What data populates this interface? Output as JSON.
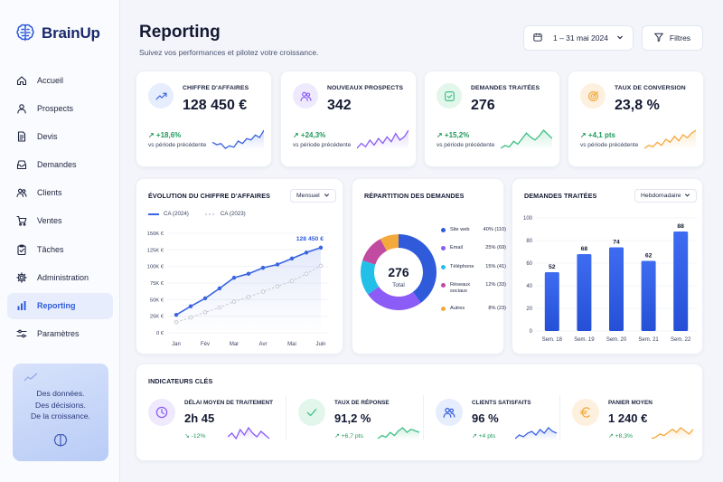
{
  "brand": {
    "name": "BrainUp"
  },
  "sidebar": {
    "items": [
      {
        "label": "Accueil",
        "icon": "home-icon"
      },
      {
        "label": "Prospects",
        "icon": "user-icon"
      },
      {
        "label": "Devis",
        "icon": "document-icon"
      },
      {
        "label": "Demandes",
        "icon": "inbox-icon"
      },
      {
        "label": "Clients",
        "icon": "users-icon"
      },
      {
        "label": "Ventes",
        "icon": "cart-icon"
      },
      {
        "label": "Tâches",
        "icon": "clipboard-check-icon"
      },
      {
        "label": "Administration",
        "icon": "gear-icon"
      },
      {
        "label": "Reporting",
        "icon": "bar-chart-icon",
        "active": true
      },
      {
        "label": "Paramètres",
        "icon": "sliders-icon"
      }
    ],
    "promo": {
      "line1": "Des données.",
      "line2": "Des décisions.",
      "line3": "De la croissance."
    }
  },
  "header": {
    "title": "Reporting",
    "subtitle": "Suivez vos performances et pilotez votre croissance.",
    "date_range": "1 – 31 mai 2024",
    "filter_label": "Filtres"
  },
  "kpis": [
    {
      "label": "CHIFFRE D'AFFAIRES",
      "value": "128 450 €",
      "delta": "↗ +18,6%",
      "sub": "vs période précédente",
      "color": "#3b64e0",
      "bg": "#e6edfc",
      "icon": "trend-up-icon",
      "spark": [
        10,
        8,
        9,
        5,
        7,
        6,
        11,
        9,
        13,
        12,
        16,
        14,
        20
      ]
    },
    {
      "label": "NOUVEAUX PROSPECTS",
      "value": "342",
      "delta": "↗ +24,3%",
      "sub": "vs période précédente",
      "color": "#8b5cf6",
      "bg": "#efe9fd",
      "icon": "users-icon",
      "spark": [
        6,
        9,
        7,
        11,
        8,
        12,
        9,
        13,
        10,
        15,
        11,
        13,
        17
      ]
    },
    {
      "label": "DEMANDES TRAITÉES",
      "value": "276",
      "delta": "↗ +15,2%",
      "sub": "vs période précédente",
      "color": "#3fbf85",
      "bg": "#e2f6ec",
      "icon": "inbox-check-icon",
      "spark": [
        5,
        7,
        6,
        10,
        8,
        12,
        16,
        13,
        11,
        14,
        18,
        15,
        12
      ]
    },
    {
      "label": "TAUX DE CONVERSION",
      "value": "23,8 %",
      "delta": "↗ +4,1 pts",
      "sub": "vs période précédente",
      "color": "#f4a93c",
      "bg": "#fdf0de",
      "icon": "target-icon",
      "spark": [
        4,
        6,
        5,
        8,
        6,
        10,
        8,
        12,
        9,
        13,
        11,
        14,
        16
      ]
    }
  ],
  "revenue_chart": {
    "title": "ÉVOLUTION DU CHIFFRE D'AFFAIRES",
    "period": "Mensuel",
    "legend_current": "CA (2024)",
    "legend_previous": "CA (2023)",
    "peak_label": "128 450 €"
  },
  "chart_data": [
    {
      "type": "line",
      "title": "ÉVOLUTION DU CHIFFRE D'AFFAIRES",
      "x": [
        "Jan",
        "",
        "Fév",
        "",
        "Mar",
        "",
        "Avr",
        "",
        "Mai",
        "",
        "Juin"
      ],
      "x_ticks": [
        "Jan",
        "Fév",
        "Mar",
        "Avr",
        "Mai",
        "Juin"
      ],
      "y_ticks": [
        "0 €",
        "25K €",
        "50K €",
        "75K €",
        "100K €",
        "125K €",
        "150K €"
      ],
      "ylim": [
        0,
        150000
      ],
      "series": [
        {
          "name": "CA (2024)",
          "color": "#3b64e0",
          "values": [
            27000,
            40000,
            52000,
            67000,
            83000,
            89000,
            98000,
            103000,
            112000,
            121000,
            128450
          ]
        },
        {
          "name": "CA (2023)",
          "color": "#c5c9d4",
          "values": [
            16000,
            23000,
            31000,
            38000,
            47000,
            54000,
            62000,
            70000,
            78000,
            89000,
            101000
          ]
        }
      ],
      "grid": true,
      "legend": "top-left"
    },
    {
      "type": "pie",
      "title": "RÉPARTITION DES DEMANDES",
      "center_value": "276",
      "center_label": "Total",
      "slices": [
        {
          "name": "Site web",
          "percent": 40,
          "count": 110,
          "display": "40% (110)",
          "color": "#2f5bdb"
        },
        {
          "name": "Email",
          "percent": 25,
          "count": 69,
          "display": "25% (69)",
          "color": "#8b5cf6"
        },
        {
          "name": "Téléphone",
          "percent": 15,
          "count": 41,
          "display": "15% (41)",
          "color": "#22c0e8"
        },
        {
          "name": "Réseaux sociaux",
          "percent": 12,
          "count": 33,
          "display": "12% (33)",
          "color": "#c04ba0"
        },
        {
          "name": "Autres",
          "percent": 8,
          "count": 23,
          "display": "8% (23)",
          "color": "#f4a93c"
        }
      ],
      "legend": "right"
    },
    {
      "type": "bar",
      "title": "DEMANDES TRAITÉES",
      "period": "Hebdomadaire",
      "categories": [
        "Sem. 18",
        "Sem. 19",
        "Sem. 20",
        "Sem. 21",
        "Sem. 22"
      ],
      "values": [
        52,
        68,
        74,
        62,
        88
      ],
      "value_labels": [
        "52",
        "68",
        "74",
        "62",
        "88"
      ],
      "y_ticks": [
        "0",
        "20",
        "40",
        "60",
        "80",
        "100"
      ],
      "ylim": [
        0,
        100
      ],
      "grid": true
    }
  ],
  "indicators": {
    "title": "INDICATEURS CLÉS",
    "items": [
      {
        "label": "DÉLAI MOYEN DE TRAITEMENT",
        "value": "2h 45",
        "delta": "↘ -12%",
        "color": "#8b5cf6",
        "bg": "#efe9fd",
        "icon": "clock-icon",
        "spark": [
          8,
          10,
          7,
          12,
          9,
          13,
          10,
          8,
          11,
          9,
          7
        ]
      },
      {
        "label": "TAUX DE RÉPONSE",
        "value": "91,2 %",
        "delta": "↗ +6,7 pts",
        "color": "#3fbf85",
        "bg": "#e2f6ec",
        "icon": "check-icon",
        "spark": [
          5,
          7,
          6,
          9,
          7,
          10,
          12,
          9,
          11,
          10,
          9
        ]
      },
      {
        "label": "CLIENTS SATISFAITS",
        "value": "96 %",
        "delta": "↗ +4 pts",
        "color": "#3b64e0",
        "bg": "#e6edfc",
        "icon": "users-icon",
        "spark": [
          6,
          8,
          7,
          9,
          10,
          8,
          11,
          9,
          12,
          10,
          9
        ]
      },
      {
        "label": "PANIER MOYEN",
        "value": "1 240 €",
        "delta": "↗ +8,3%",
        "color": "#f4a93c",
        "bg": "#fdf0de",
        "icon": "euro-icon",
        "spark": [
          5,
          6,
          8,
          7,
          9,
          11,
          9,
          12,
          10,
          8,
          11
        ]
      }
    ]
  }
}
